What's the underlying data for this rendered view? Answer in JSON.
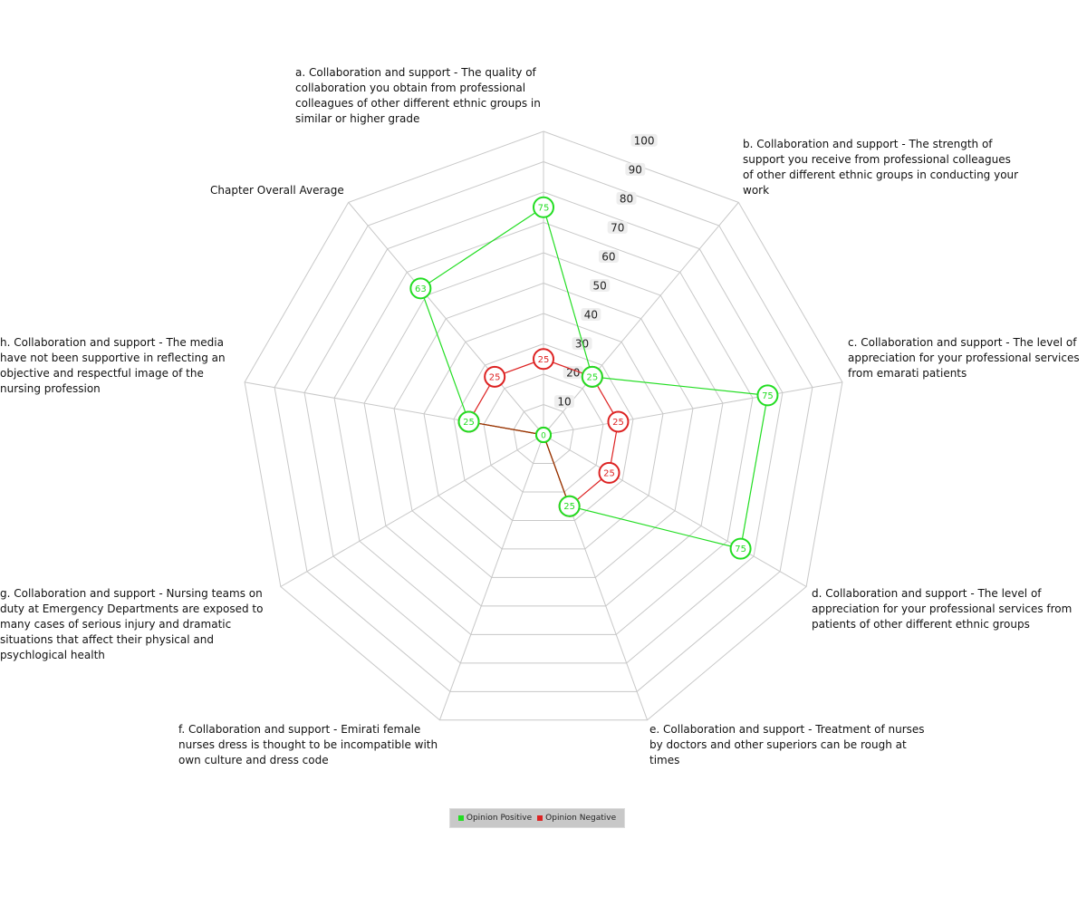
{
  "chart_data": {
    "type": "radar",
    "title": "",
    "rmax": 100,
    "ticks": [
      10,
      20,
      30,
      40,
      50,
      60,
      70,
      80,
      90,
      100
    ],
    "axes": [
      "a. Collaboration and support - The quality of collaboration you obtain from professional colleagues of other different ethnic groups in similar or higher grade",
      "b. Collaboration and support - The strength of support you receive from professional colleagues of other different ethnic groups in conducting your work",
      "c. Collaboration and support - The level of appreciation for your professional services from emarati patients",
      "d. Collaboration and support - The level of appreciation for your professional services from patients of other different ethnic groups",
      "e. Collaboration and support - Treatment of nurses by doctors and other superiors can be rough at times",
      "f. Collaboration and support - Emirati female nurses dress is thought to be incompatible with own culture and dress code",
      "g. Collaboration and support - Nursing teams on duty at Emergency Departments are exposed to many cases of serious injury and dramatic situations that affect their physical and psychlogical health",
      "h. Collaboration and support - The media have not been supportive in reflecting an objective and respectful image of the nursing profession",
      "Chapter Overall Average"
    ],
    "series": [
      {
        "name": "Opinion Positive",
        "color": "#22dd22",
        "values": [
          75,
          25,
          75,
          75,
          25,
          0,
          0,
          25,
          63
        ]
      },
      {
        "name": "Opinion Negative",
        "color": "#dd2222",
        "values": [
          25,
          25,
          25,
          25,
          25,
          0,
          0,
          25,
          25
        ]
      }
    ],
    "legend_position": "bottom"
  }
}
